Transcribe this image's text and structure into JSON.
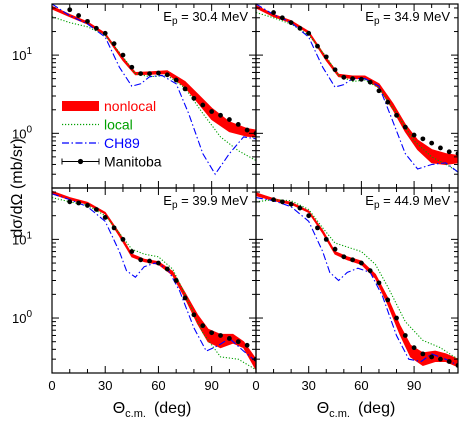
{
  "figure": {
    "y_title": "dσ/dΩ  (mb/sr)",
    "x_title_main": "Θ",
    "x_title_sub": "c.m.",
    "x_title_unit": "(deg)"
  },
  "legend": [
    {
      "label": "nonlocal",
      "color": "#ff0000",
      "style": "band"
    },
    {
      "label": "local",
      "color": "#00a000",
      "style": "dotted"
    },
    {
      "label": "CH89",
      "color": "#0000ff",
      "style": "dashdot"
    },
    {
      "label": "Manitoba",
      "color": "#000000",
      "style": "points"
    }
  ],
  "chart_data": [
    {
      "type": "line",
      "panel": "top-left",
      "energy_label": {
        "main": "E",
        "sub": "p",
        "rest": " = 30.4 MeV"
      },
      "xlim": [
        0,
        115
      ],
      "ylim": [
        0.2,
        45
      ],
      "yscale": "log",
      "x_ticks": [
        0,
        30,
        60,
        90
      ],
      "y_ticks": [
        1,
        10
      ],
      "series": [
        {
          "name": "nonlocal",
          "x": [
            0,
            10,
            20,
            30,
            40,
            47,
            55,
            65,
            75,
            82,
            90,
            100,
            110,
            115
          ],
          "y_low": [
            39,
            31,
            25,
            18,
            8.5,
            5.6,
            5.7,
            5.8,
            3.9,
            2.5,
            1.5,
            1.05,
            0.92,
            0.9
          ],
          "y_high": [
            42,
            33,
            26.5,
            19,
            9.2,
            6,
            6.1,
            6.3,
            4.6,
            3.2,
            2.1,
            1.4,
            1.15,
            1.1
          ]
        },
        {
          "name": "local",
          "x": [
            0,
            10,
            20,
            30,
            40,
            47,
            55,
            65,
            75,
            85,
            95,
            105,
            115
          ],
          "y": [
            31,
            26,
            23,
            18,
            9.5,
            5.8,
            5.3,
            5.5,
            3.8,
            1.8,
            0.9,
            0.6,
            0.45
          ]
        },
        {
          "name": "CH89",
          "x": [
            0,
            10,
            20,
            30,
            38,
            45,
            50,
            55,
            62,
            70,
            77,
            85,
            92,
            100,
            108,
            115
          ],
          "y": [
            45,
            32,
            25,
            17,
            7,
            4.0,
            4.3,
            5.3,
            5.5,
            4.3,
            1.8,
            0.55,
            0.3,
            0.55,
            0.9,
            0.85
          ]
        },
        {
          "name": "Manitoba",
          "x": [
            10,
            15,
            20,
            25,
            30,
            35,
            40,
            45,
            50,
            55,
            60,
            65,
            70,
            75,
            80,
            85,
            90,
            95,
            100,
            105,
            110,
            115
          ],
          "y": [
            38,
            32,
            27,
            22,
            19,
            14,
            10,
            7,
            5.8,
            5.8,
            5.9,
            5.6,
            4.8,
            3.7,
            2.8,
            2.3,
            1.9,
            1.7,
            1.5,
            1.3,
            1.1,
            1.0
          ]
        }
      ]
    },
    {
      "type": "line",
      "panel": "top-right",
      "energy_label": {
        "main": "E",
        "sub": "p",
        "rest": " = 34.9 MeV"
      },
      "xlim": [
        0,
        115
      ],
      "ylim": [
        0.2,
        45
      ],
      "yscale": "log",
      "x_ticks": [
        0,
        30,
        60,
        90
      ],
      "y_ticks": [
        1,
        10
      ],
      "series": [
        {
          "name": "nonlocal",
          "x": [
            0,
            10,
            20,
            30,
            40,
            47,
            55,
            62,
            70,
            78,
            85,
            92,
            100,
            108,
            115
          ],
          "y_low": [
            40,
            31,
            26,
            19,
            8.5,
            5.3,
            5.0,
            5.0,
            3.8,
            2.0,
            1.05,
            0.62,
            0.42,
            0.4,
            0.42
          ],
          "y_high": [
            43,
            33,
            27.5,
            20,
            9.2,
            5.7,
            5.4,
            5.4,
            4.3,
            2.4,
            1.3,
            0.82,
            0.62,
            0.55,
            0.52
          ]
        },
        {
          "name": "local",
          "x": [
            0,
            10,
            20,
            30,
            40,
            47,
            55,
            62,
            70,
            80,
            90,
            100,
            110,
            115
          ],
          "y": [
            35,
            30,
            25,
            18,
            9.5,
            5.5,
            4.6,
            4.8,
            3.8,
            1.8,
            0.8,
            0.5,
            0.38,
            0.32
          ]
        },
        {
          "name": "CH89",
          "x": [
            0,
            10,
            20,
            30,
            38,
            45,
            50,
            55,
            62,
            70,
            77,
            85,
            92,
            100,
            108,
            115
          ],
          "y": [
            45,
            33,
            26,
            17,
            7,
            3.9,
            4.2,
            5.0,
            5.0,
            4.0,
            1.6,
            0.55,
            0.35,
            0.4,
            0.42,
            0.32
          ]
        },
        {
          "name": "Manitoba",
          "x": [
            10,
            15,
            20,
            25,
            30,
            35,
            40,
            45,
            50,
            55,
            60,
            65,
            70,
            75,
            80,
            85,
            90,
            95,
            100,
            105,
            110,
            115
          ],
          "y": [
            35,
            30,
            26,
            22,
            19,
            13,
            9.5,
            6.5,
            5.2,
            5.0,
            4.9,
            4.5,
            3.5,
            2.5,
            1.7,
            1.2,
            0.95,
            0.85,
            0.75,
            0.65,
            0.58,
            0.55
          ]
        }
      ]
    },
    {
      "type": "line",
      "panel": "bottom-left",
      "energy_label": {
        "main": "E",
        "sub": "p",
        "rest": " = 39.9 MeV"
      },
      "xlim": [
        0,
        115
      ],
      "ylim": [
        0.2,
        45
      ],
      "yscale": "log",
      "x_ticks": [
        0,
        30,
        60,
        90
      ],
      "y_ticks": [
        1,
        10
      ],
      "series": [
        {
          "name": "nonlocal",
          "x": [
            0,
            10,
            20,
            30,
            38,
            45,
            52,
            60,
            68,
            75,
            82,
            88,
            95,
            102,
            108,
            115
          ],
          "y_low": [
            38,
            32,
            28,
            21,
            11,
            6.0,
            5.2,
            4.8,
            3.5,
            1.8,
            0.85,
            0.5,
            0.42,
            0.48,
            0.42,
            0.22
          ],
          "y_high": [
            41,
            34,
            29.5,
            22,
            12,
            6.5,
            5.6,
            5.2,
            3.9,
            2.1,
            1.1,
            0.72,
            0.62,
            0.62,
            0.5,
            0.3
          ]
        },
        {
          "name": "local",
          "x": [
            0,
            10,
            20,
            30,
            38,
            45,
            52,
            60,
            68,
            75,
            85,
            95,
            105,
            115
          ],
          "y": [
            34,
            30,
            27,
            20,
            12,
            7.5,
            6.5,
            6.0,
            4.2,
            2.0,
            0.65,
            0.32,
            0.3,
            0.22
          ]
        },
        {
          "name": "CH89",
          "x": [
            0,
            10,
            20,
            30,
            38,
            42,
            47,
            52,
            58,
            65,
            72,
            80,
            87,
            94,
            100,
            108,
            115
          ],
          "y": [
            38,
            32,
            26,
            17,
            7,
            4.0,
            3.3,
            4.5,
            5.0,
            4.3,
            2.2,
            0.75,
            0.38,
            0.45,
            0.55,
            0.38,
            0.28
          ]
        },
        {
          "name": "Manitoba",
          "x": [
            10,
            15,
            20,
            25,
            30,
            35,
            40,
            45,
            50,
            55,
            60,
            65,
            70,
            75,
            80,
            85,
            90,
            95,
            100,
            105,
            110,
            115
          ],
          "y": [
            30,
            29,
            27,
            24,
            19,
            14,
            10,
            7,
            5.5,
            5.3,
            5.0,
            4.2,
            3.0,
            1.8,
            1.1,
            0.8,
            0.65,
            0.6,
            0.55,
            0.5,
            0.45,
            0.3
          ]
        }
      ]
    },
    {
      "type": "line",
      "panel": "bottom-right",
      "energy_label": {
        "main": "E",
        "sub": "p",
        "rest": " = 44.9 MeV"
      },
      "xlim": [
        0,
        115
      ],
      "ylim": [
        0.2,
        45
      ],
      "yscale": "log",
      "x_ticks": [
        0,
        30,
        60,
        90
      ],
      "y_ticks": [
        1,
        10
      ],
      "series": [
        {
          "name": "nonlocal",
          "x": [
            0,
            10,
            20,
            30,
            38,
            45,
            52,
            60,
            68,
            75,
            82,
            88,
            95,
            102,
            108,
            115
          ],
          "y_low": [
            36,
            31,
            28,
            22,
            12,
            6.5,
            5.5,
            4.8,
            3.2,
            1.5,
            0.62,
            0.32,
            0.25,
            0.28,
            0.28,
            0.24
          ],
          "y_high": [
            39,
            33,
            29.5,
            23,
            13,
            7.0,
            6.0,
            5.3,
            3.6,
            1.8,
            0.8,
            0.45,
            0.36,
            0.38,
            0.35,
            0.3
          ]
        },
        {
          "name": "local",
          "x": [
            0,
            10,
            20,
            30,
            38,
            45,
            52,
            60,
            68,
            75,
            85,
            95,
            105,
            115
          ],
          "y": [
            30,
            32,
            31,
            24,
            14,
            9.0,
            8.0,
            7.0,
            4.8,
            2.5,
            0.9,
            0.52,
            0.42,
            0.3
          ]
        },
        {
          "name": "CH89",
          "x": [
            0,
            10,
            20,
            30,
            38,
            42,
            47,
            52,
            58,
            65,
            72,
            80,
            87,
            94,
            100,
            108,
            115
          ],
          "y": [
            34,
            31,
            26,
            17,
            7,
            3.8,
            3.0,
            3.8,
            4.3,
            3.8,
            1.9,
            0.6,
            0.3,
            0.28,
            0.35,
            0.3,
            0.25
          ]
        },
        {
          "name": "Manitoba",
          "x": [
            10,
            15,
            20,
            25,
            30,
            35,
            40,
            45,
            50,
            55,
            60,
            65,
            70,
            75,
            80,
            85,
            90,
            95,
            100,
            105,
            110,
            115
          ],
          "y": [
            32,
            30,
            28,
            25,
            20,
            14,
            10,
            7.5,
            6.0,
            5.5,
            5.0,
            4.0,
            2.8,
            1.7,
            1.0,
            0.6,
            0.42,
            0.35,
            0.32,
            0.3,
            0.28,
            0.25
          ]
        }
      ]
    }
  ]
}
